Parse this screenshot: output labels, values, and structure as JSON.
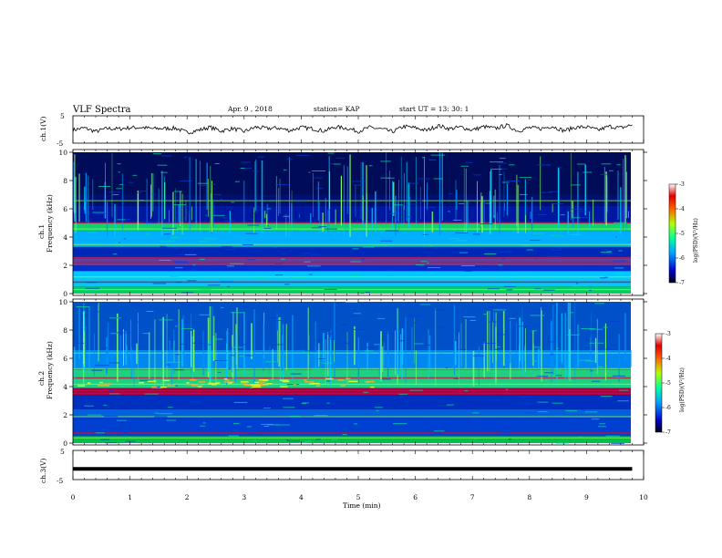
{
  "chart_data": {
    "type": "heatmap",
    "title": "VLF Spectra",
    "header": {
      "date": "Apr. 9 , 2018",
      "station": "station= KAP",
      "start": "start UT = 13: 30: 1"
    },
    "x_axis": {
      "label": "Time (min)",
      "range": [
        0,
        10
      ],
      "ticks": [
        "0",
        "1",
        "2",
        "3",
        "4",
        "5",
        "6",
        "7",
        "8",
        "9",
        "10"
      ]
    },
    "panels": [
      {
        "id": "ch1-waveform",
        "type": "line",
        "ylabel": "ch.1(V)",
        "ylim": [
          -5,
          5
        ],
        "ticks": [
          "5",
          "-5"
        ],
        "x": [
          0,
          0.2,
          0.4,
          0.6,
          0.8,
          1.0,
          1.2,
          1.4,
          1.6,
          1.8,
          2.0,
          2.2,
          2.4,
          2.6,
          2.8,
          3.0,
          3.2,
          3.4,
          3.6,
          3.8,
          4.0,
          4.2,
          4.4,
          4.6,
          4.8,
          5.0,
          5.2,
          5.4,
          5.6,
          5.8,
          6.0,
          6.2,
          6.4,
          6.6,
          6.8,
          7.0,
          7.2,
          7.4,
          7.6,
          7.8,
          8.0,
          8.2,
          8.4,
          8.6,
          8.8,
          9.0,
          9.2,
          9.4,
          9.6,
          9.8
        ],
        "y": [
          -0.2,
          0.6,
          -0.8,
          0.4,
          0.2,
          0.7,
          0.8,
          0.3,
          0.4,
          0.5,
          -1.2,
          -0.3,
          0.9,
          -0.6,
          0.4,
          -0.8,
          0.9,
          0.4,
          0.6,
          -0.4,
          0.8,
          0.3,
          -0.6,
          1.0,
          0.5,
          -0.7,
          0.8,
          0.2,
          -0.9,
          1.2,
          0.6,
          -0.4,
          1.5,
          0.3,
          0.9,
          -0.2,
          1.1,
          0.4,
          1.6,
          -0.6,
          0.7,
          0.3,
          1.3,
          -0.5,
          0.8,
          1.0,
          -0.3,
          1.2,
          0.6,
          1.8
        ]
      },
      {
        "id": "ch1-spectrogram",
        "type": "heatmap",
        "label_line1": "ch.1",
        "label_line2": "Frequency (kHz)",
        "ylim": [
          0,
          10
        ],
        "ticks": [
          "0",
          "2",
          "4",
          "6",
          "8",
          "10"
        ],
        "colorbar": {
          "label": "log(PSD)(V²/Hz)",
          "range": [
            -7,
            -3
          ],
          "ticks": [
            "-3",
            "-4",
            "-5",
            "-6",
            "-7"
          ]
        }
      },
      {
        "id": "ch2-spectrogram",
        "type": "heatmap",
        "label_line1": "ch.2",
        "label_line2": "Frequency (kHz)",
        "ylim": [
          0,
          10
        ],
        "ticks": [
          "0",
          "2",
          "4",
          "6",
          "8",
          "10"
        ],
        "colorbar": {
          "label": "log(PSD)(V²/Hz)",
          "range": [
            -7,
            -3
          ],
          "ticks": [
            "-3",
            "-4",
            "-5",
            "-6",
            "-7"
          ]
        }
      },
      {
        "id": "ch3-waveform",
        "type": "line",
        "ylabel": "ch.3(V)",
        "ylim": [
          -5,
          5
        ],
        "ticks": [
          "5",
          "-5"
        ],
        "x": [
          0,
          9.8
        ],
        "y": [
          -1.5,
          -1.5
        ]
      }
    ]
  }
}
